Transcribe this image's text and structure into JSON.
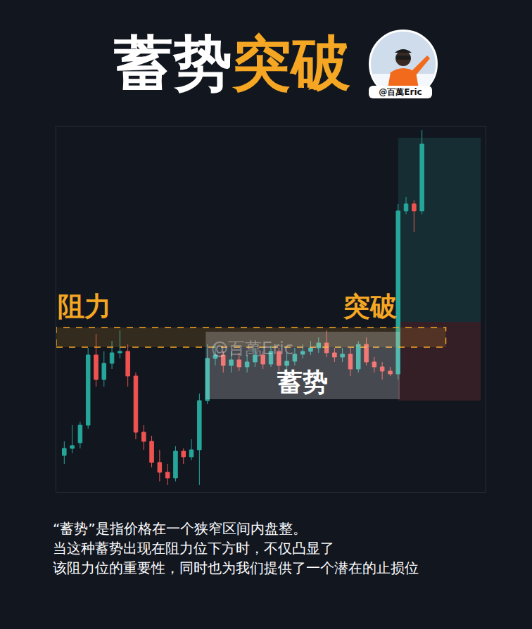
{
  "header": {
    "title_parts": [
      {
        "text": "蓄势",
        "color": "#ffffff"
      },
      {
        "text": "突破",
        "color": "#f5a623"
      }
    ],
    "avatar_handle": "@百萬Eric"
  },
  "chart_data": {
    "type": "candlestick",
    "x": [
      0,
      1,
      2,
      3,
      4,
      5,
      6,
      7,
      8,
      9,
      10,
      11,
      12,
      13,
      14,
      15,
      16,
      17,
      18,
      19,
      20,
      21,
      22,
      23,
      24,
      25,
      26,
      27,
      28,
      29,
      30,
      31,
      32,
      33,
      34,
      35,
      36,
      37,
      38,
      39,
      40,
      41,
      42,
      43,
      44,
      45
    ],
    "open": [
      52,
      62,
      70,
      95,
      195,
      160,
      183,
      198,
      200,
      165,
      85,
      72,
      42,
      28,
      20,
      58,
      50,
      60,
      130,
      190,
      195,
      180,
      188,
      178,
      185,
      195,
      182,
      200,
      180,
      186,
      196,
      200,
      205,
      212,
      198,
      192,
      196,
      175,
      210,
      185,
      178,
      172,
      168,
      400,
      410,
      400
    ],
    "high": [
      72,
      95,
      100,
      205,
      225,
      200,
      215,
      230,
      210,
      170,
      95,
      80,
      60,
      40,
      65,
      62,
      75,
      140,
      210,
      210,
      200,
      200,
      198,
      195,
      205,
      200,
      208,
      205,
      198,
      205,
      210,
      215,
      220,
      230,
      205,
      205,
      205,
      215,
      220,
      192,
      185,
      178,
      410,
      420,
      415,
      515
    ],
    "low": [
      40,
      55,
      62,
      90,
      150,
      150,
      175,
      190,
      150,
      75,
      60,
      35,
      15,
      10,
      15,
      40,
      45,
      10,
      125,
      180,
      170,
      170,
      172,
      170,
      178,
      175,
      178,
      172,
      172,
      180,
      190,
      195,
      198,
      192,
      185,
      185,
      165,
      170,
      180,
      170,
      160,
      165,
      160,
      395,
      370,
      395
    ],
    "close": [
      62,
      66,
      95,
      195,
      160,
      183,
      198,
      200,
      165,
      85,
      72,
      42,
      28,
      20,
      58,
      50,
      60,
      130,
      190,
      195,
      180,
      188,
      178,
      185,
      195,
      182,
      200,
      180,
      186,
      196,
      200,
      205,
      212,
      198,
      192,
      196,
      175,
      210,
      185,
      178,
      172,
      168,
      400,
      410,
      400,
      495
    ],
    "xlim": [
      -1,
      53
    ],
    "ylim": [
      0,
      520
    ],
    "xticks": [],
    "yticks": [],
    "tick_labels": false,
    "grid": false,
    "resistance": {
      "label": "阻力",
      "x": [
        -1,
        48
      ],
      "y": [
        206,
        234
      ],
      "color": "#f5a623"
    },
    "breakout_label": "突破",
    "consolidation": {
      "label": "蓄势",
      "watermark": "@百萬Eric",
      "x": [
        17.8,
        42.2
      ],
      "y": [
        132,
        228
      ]
    },
    "target_zone": {
      "x": [
        42,
        52.4
      ],
      "y": [
        242,
        504
      ],
      "color": "#26a69a"
    },
    "stop_zone": {
      "x": [
        42,
        52.4
      ],
      "y": [
        130,
        242
      ],
      "color": "#ef5350"
    }
  },
  "caption": [
    "“蓄势”是指价格在一个狭窄区间内盘整。",
    "当这种蓄势出现在阻力位下方时，不仅凸显了",
    "该阻力位的重要性，同时也为我们提供了一个潜在的止损位"
  ]
}
